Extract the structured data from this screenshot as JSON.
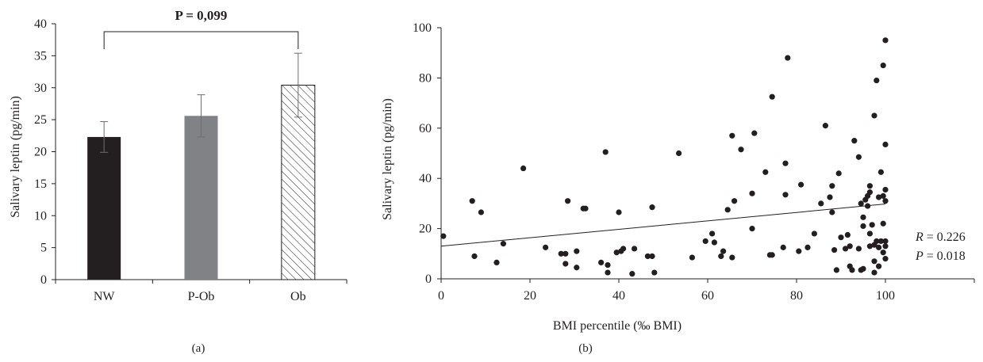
{
  "panel_labels": {
    "a": "(a)",
    "b": "(b)"
  },
  "colors": {
    "nw_bar": "#231f20",
    "pob_bar": "#808285",
    "ob_hatch": "#231f20",
    "axis": "#231f20",
    "points": "#231f20"
  },
  "significance": {
    "text": "P = 0,099",
    "from": "NW",
    "to": "Ob"
  },
  "stats": {
    "r": {
      "label": "R",
      "rest": " = 0.226"
    },
    "p": {
      "label": "P",
      "rest": " = 0.018"
    }
  },
  "chart_data": [
    {
      "type": "bar",
      "panel": "(a)",
      "title": "",
      "xlabel": "",
      "ylabel": "Salivary leptin (pg/min)",
      "ylim": [
        0,
        40
      ],
      "yticks": [
        "0",
        "5",
        "10",
        "15",
        "20",
        "25",
        "30",
        "35",
        "40"
      ],
      "categories": [
        "NW",
        "P-Ob",
        "Ob"
      ],
      "values": [
        22.3,
        25.6,
        30.4
      ],
      "errors": [
        2.4,
        3.3,
        5.0
      ],
      "fills": [
        "solid-black",
        "solid-gray",
        "hatched"
      ],
      "grid": false
    },
    {
      "type": "scatter",
      "panel": "(b)",
      "title": "",
      "xlabel": "BMI percentile (‰ BMI)",
      "ylabel": "Salivary leptin (pg/min)",
      "xlim": [
        0,
        120
      ],
      "ylim": [
        0,
        100
      ],
      "xticks": [
        "0",
        "20",
        "40",
        "60",
        "80",
        "100"
      ],
      "yticks": [
        "0",
        "20",
        "40",
        "60",
        "80",
        "100"
      ],
      "trendline": {
        "x": [
          0,
          100
        ],
        "y": [
          13.0,
          29.8
        ]
      },
      "points": [
        [
          0.5,
          17
        ],
        [
          7,
          31
        ],
        [
          7.5,
          9
        ],
        [
          9,
          26.5
        ],
        [
          12.5,
          6.5
        ],
        [
          14,
          14
        ],
        [
          18.5,
          44
        ],
        [
          23.5,
          12.5
        ],
        [
          27,
          10
        ],
        [
          28,
          6
        ],
        [
          28,
          10
        ],
        [
          28.5,
          31
        ],
        [
          30.5,
          4.5
        ],
        [
          30.5,
          11
        ],
        [
          32,
          28
        ],
        [
          32.5,
          28
        ],
        [
          36,
          6.5
        ],
        [
          37,
          50.5
        ],
        [
          37.5,
          2.5
        ],
        [
          37.5,
          5.5
        ],
        [
          39.5,
          10.5
        ],
        [
          40,
          26.5
        ],
        [
          40.5,
          11
        ],
        [
          41,
          12
        ],
        [
          43,
          2
        ],
        [
          43.5,
          12
        ],
        [
          46.5,
          9
        ],
        [
          47.5,
          9
        ],
        [
          47.5,
          28.5
        ],
        [
          48,
          2.5
        ],
        [
          53.5,
          50
        ],
        [
          56.5,
          8.5
        ],
        [
          59.5,
          15
        ],
        [
          61,
          18
        ],
        [
          61.5,
          14.5
        ],
        [
          63,
          9
        ],
        [
          63.5,
          11
        ],
        [
          64.5,
          27.5
        ],
        [
          65.5,
          57
        ],
        [
          65.5,
          8.5
        ],
        [
          66,
          31
        ],
        [
          67.5,
          51.5
        ],
        [
          70,
          20
        ],
        [
          70,
          34
        ],
        [
          70.5,
          58
        ],
        [
          73,
          42.5
        ],
        [
          74,
          9.5
        ],
        [
          74.5,
          72.5
        ],
        [
          74.5,
          9.5
        ],
        [
          77,
          12.5
        ],
        [
          77.5,
          33.5
        ],
        [
          77.5,
          46
        ],
        [
          78,
          88
        ],
        [
          80.5,
          11
        ],
        [
          81,
          37.5
        ],
        [
          82.5,
          12.5
        ],
        [
          84,
          18
        ],
        [
          85.5,
          30
        ],
        [
          86.5,
          61
        ],
        [
          87.5,
          32.5
        ],
        [
          88,
          26.5
        ],
        [
          88,
          37
        ],
        [
          88.5,
          11.5
        ],
        [
          89,
          3.5
        ],
        [
          89.5,
          42
        ],
        [
          90,
          16.5
        ],
        [
          91,
          12
        ],
        [
          91.5,
          17.5
        ],
        [
          92,
          5
        ],
        [
          92,
          13
        ],
        [
          92.5,
          3.5
        ],
        [
          93,
          55
        ],
        [
          94,
          48.5
        ],
        [
          94,
          12
        ],
        [
          94.5,
          30
        ],
        [
          94.5,
          3.5
        ],
        [
          95,
          4
        ],
        [
          95,
          24.5
        ],
        [
          95,
          21
        ],
        [
          95.5,
          31.5
        ],
        [
          96,
          29
        ],
        [
          96,
          33
        ],
        [
          96.5,
          37
        ],
        [
          96.5,
          34.5
        ],
        [
          96.5,
          18
        ],
        [
          96.5,
          13
        ],
        [
          97,
          21.5
        ],
        [
          97.5,
          2.5
        ],
        [
          97.5,
          65
        ],
        [
          97.5,
          7
        ],
        [
          97.5,
          13.5
        ],
        [
          98,
          15
        ],
        [
          98,
          79
        ],
        [
          98.5,
          32.5
        ],
        [
          98.5,
          5
        ],
        [
          98.5,
          12.5
        ],
        [
          99,
          42.5
        ],
        [
          99,
          15
        ],
        [
          99.5,
          10.5
        ],
        [
          99.5,
          22
        ],
        [
          99.5,
          85
        ],
        [
          99.5,
          33
        ],
        [
          100,
          95
        ],
        [
          100,
          53.5
        ],
        [
          100,
          35.5
        ],
        [
          100,
          31
        ],
        [
          100,
          15
        ],
        [
          100,
          13
        ],
        [
          100,
          8
        ]
      ],
      "grid": false
    }
  ]
}
